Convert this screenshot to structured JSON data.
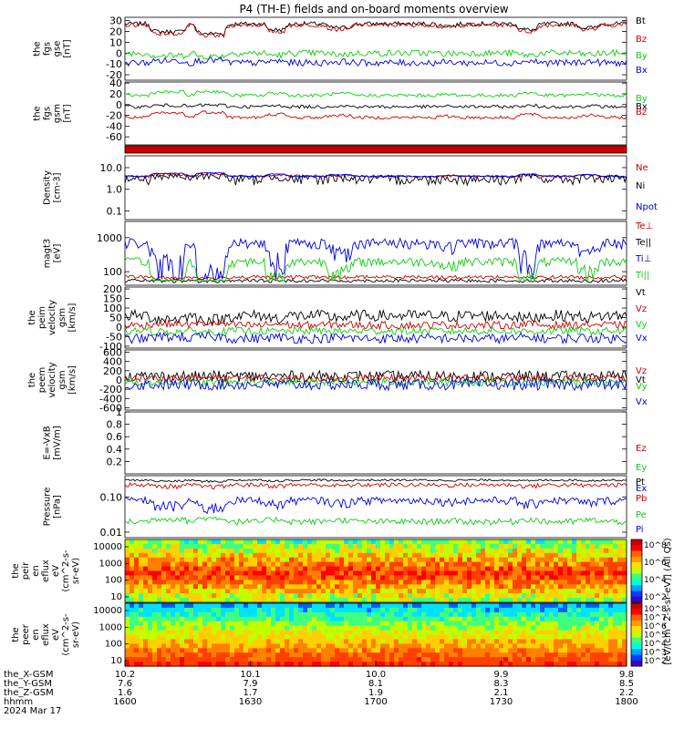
{
  "title": "P4 (TH-E) fields and on-board moments overview",
  "colors": {
    "black": "#000000",
    "red": "#cc0000",
    "green": "#11cc11",
    "blue": "#0000dd",
    "cyan": "#00cccc"
  },
  "chart_data": [
    {
      "type": "line",
      "id": "fgs_gse",
      "ylabel": [
        "the",
        "fgs",
        "gse",
        "[nT]"
      ],
      "ylim": [
        -25,
        33
      ],
      "yticks": [
        -20,
        -10,
        0,
        10,
        20,
        30
      ],
      "series": [
        {
          "name": "Bt",
          "color": "black"
        },
        {
          "name": "Bz",
          "color": "red"
        },
        {
          "name": "By",
          "color": "green"
        },
        {
          "name": "Bx",
          "color": "blue"
        }
      ]
    },
    {
      "type": "line",
      "id": "fgs_gsm",
      "ylabel": [
        "the",
        "fgs",
        "gsm",
        "[nT]"
      ],
      "ylim": [
        -75,
        42
      ],
      "yticks": [
        -60,
        -40,
        -20,
        0,
        20,
        40
      ],
      "series": [
        {
          "name": "By",
          "color": "green"
        },
        {
          "name": "Bx",
          "color": "black"
        },
        {
          "name": "Bz",
          "color": "red"
        }
      ]
    },
    {
      "type": "bar",
      "id": "mode_bar",
      "color": "red"
    },
    {
      "type": "line",
      "id": "density",
      "ylabel": [
        "Density",
        "[cm-3]"
      ],
      "log": true,
      "ylim": [
        0.04,
        35
      ],
      "yticks": [
        {
          "v": 0.1,
          "label": "0.1"
        },
        {
          "v": 1,
          "label": "1.0"
        },
        {
          "v": 10,
          "label": "10.0"
        }
      ],
      "series": [
        {
          "name": "Ne",
          "color": "red"
        },
        {
          "name": "Ni",
          "color": "black"
        },
        {
          "name": "Npot",
          "color": "blue"
        }
      ]
    },
    {
      "type": "line",
      "id": "temperature",
      "ylabel": [
        "magt3",
        "[eV]"
      ],
      "log": true,
      "ylim": [
        40,
        3000
      ],
      "yticks": [
        {
          "v": 100,
          "label": "100"
        },
        {
          "v": 1000,
          "label": "1000"
        }
      ],
      "series": [
        {
          "name": "Te⊥",
          "color": "red"
        },
        {
          "name": "Te||",
          "color": "black"
        },
        {
          "name": "Ti⊥",
          "color": "blue"
        },
        {
          "name": "Ti||",
          "color": "green"
        }
      ]
    },
    {
      "type": "line",
      "id": "peim_velocity",
      "ylabel": [
        "the",
        "peim",
        "velocity",
        "gsm",
        "[km/s]"
      ],
      "ylim": [
        -110,
        210
      ],
      "yticks": [
        -100,
        -50,
        0,
        50,
        100,
        150,
        200
      ],
      "series": [
        {
          "name": "Vt",
          "color": "black"
        },
        {
          "name": "Vz",
          "color": "red"
        },
        {
          "name": "Vy",
          "color": "green"
        },
        {
          "name": "Vx",
          "color": "blue"
        }
      ]
    },
    {
      "type": "line",
      "id": "peem_velocity",
      "ylabel": [
        "the",
        "peem",
        "velocity",
        "gsm",
        "[km/s]"
      ],
      "ylim": [
        -650,
        650
      ],
      "yticks": [
        -600,
        -400,
        -200,
        0,
        200,
        400,
        600
      ],
      "series": [
        {
          "name": "Vt",
          "color": "black"
        },
        {
          "name": "Vz",
          "color": "red"
        },
        {
          "name": "Vy",
          "color": "green"
        },
        {
          "name": "Vx",
          "color": "blue"
        }
      ]
    },
    {
      "type": "line",
      "id": "efield",
      "ylabel": [
        "E=-VxB",
        "[mV/m]"
      ],
      "ylim": [
        0,
        1
      ],
      "yticks": [
        0.2,
        0.4,
        0.6,
        0.8,
        1.0
      ],
      "series": [
        {
          "name": "Ez",
          "color": "red"
        },
        {
          "name": "Ey",
          "color": "green"
        },
        {
          "name": "Ex",
          "color": "blue"
        }
      ]
    },
    {
      "type": "line",
      "id": "pressure",
      "ylabel": [
        "Pressure",
        "[nPa]"
      ],
      "log": true,
      "ylim": [
        0.007,
        0.4
      ],
      "yticks": [
        {
          "v": 0.01,
          "label": "0.01"
        },
        {
          "v": 0.1,
          "label": "0.10"
        }
      ],
      "series": [
        {
          "name": "Pt",
          "color": "black"
        },
        {
          "name": "Pb",
          "color": "red"
        },
        {
          "name": "Pe",
          "color": "green"
        },
        {
          "name": "Pi",
          "color": "blue"
        }
      ]
    },
    {
      "type": "heatmap",
      "id": "peir_eflux",
      "ylabel": [
        "the",
        "peir",
        "en",
        "eflux",
        "eV",
        "(cm^2-s-",
        "sr-eV)"
      ],
      "yticks": [
        "10000",
        "1000",
        "100",
        "10"
      ]
    },
    {
      "type": "heatmap",
      "id": "peer_eflux",
      "ylabel": [
        "the",
        "peer",
        "en",
        "eflux",
        "eV",
        "(cm^2-s-",
        "sr-eV)"
      ],
      "yticks": [
        "10000",
        "1000",
        "100",
        "10"
      ]
    }
  ],
  "colorbars": [
    {
      "ticks": [
        "10^8",
        "10^6",
        "10^4",
        "10^2"
      ]
    },
    {
      "ticks": [
        "10^8",
        "10^7",
        "10^6",
        "10^5",
        "10^4",
        "10^3",
        "10^2"
      ]
    }
  ],
  "colorbar_label": "[eV/(cm^2-s-sr-eV)] (All Qs)",
  "xaxis": {
    "row_labels": [
      "the_X-GSM",
      "the_Y-GSM",
      "the_Z-GSM",
      "hhmm",
      "2024 Mar 17"
    ],
    "columns": [
      [
        "10.2",
        "7.6",
        "1.6",
        "1600"
      ],
      [
        "10.1",
        "7.9",
        "1.7",
        "1630"
      ],
      [
        "10.0",
        "8.1",
        "1.9",
        "1700"
      ],
      [
        "9.9",
        "8.3",
        "2.1",
        "1730"
      ],
      [
        "9.8",
        "8.5",
        "2.2",
        "1800"
      ]
    ]
  }
}
